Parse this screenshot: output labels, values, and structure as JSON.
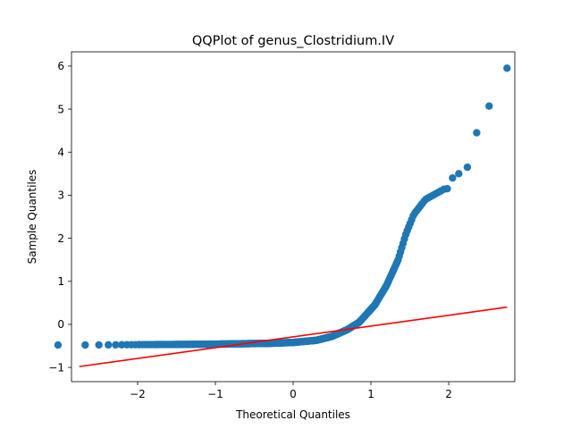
{
  "chart_data": {
    "type": "scatter",
    "title": "QQPlot of genus_Clostridium.IV",
    "xlabel": "Theoretical Quantiles",
    "ylabel": "Sample Quantiles",
    "xlim": [
      -2.85,
      2.85
    ],
    "ylim": [
      -1.33,
      6.33
    ],
    "xticks": [
      -2,
      -1,
      0,
      1,
      2
    ],
    "yticks": [
      -1,
      0,
      1,
      2,
      3,
      4,
      5,
      6
    ],
    "grid": false,
    "marker_color": "#1f77b4",
    "line_color": "#ff0000",
    "reference_line": {
      "x": [
        -2.75,
        2.75
      ],
      "y": [
        -0.98,
        0.4
      ]
    },
    "knots": [
      [
        -2.75,
        -0.48
      ],
      [
        -1.0,
        -0.46
      ],
      [
        -0.3,
        -0.44
      ],
      [
        0.0,
        -0.42
      ],
      [
        0.3,
        -0.37
      ],
      [
        0.5,
        -0.28
      ],
      [
        0.7,
        -0.12
      ],
      [
        0.85,
        0.05
      ],
      [
        0.95,
        0.25
      ],
      [
        1.05,
        0.45
      ],
      [
        1.2,
        0.9
      ],
      [
        1.35,
        1.5
      ],
      [
        1.45,
        2.1
      ],
      [
        1.55,
        2.55
      ],
      [
        1.7,
        2.9
      ],
      [
        1.85,
        3.05
      ],
      [
        1.95,
        3.15
      ]
    ],
    "tail_points": [
      [
        2.05,
        3.4
      ],
      [
        2.13,
        3.5
      ],
      [
        2.24,
        3.65
      ],
      [
        2.36,
        4.45
      ],
      [
        2.52,
        5.07
      ],
      [
        2.75,
        5.95
      ]
    ],
    "n_points": 400
  }
}
